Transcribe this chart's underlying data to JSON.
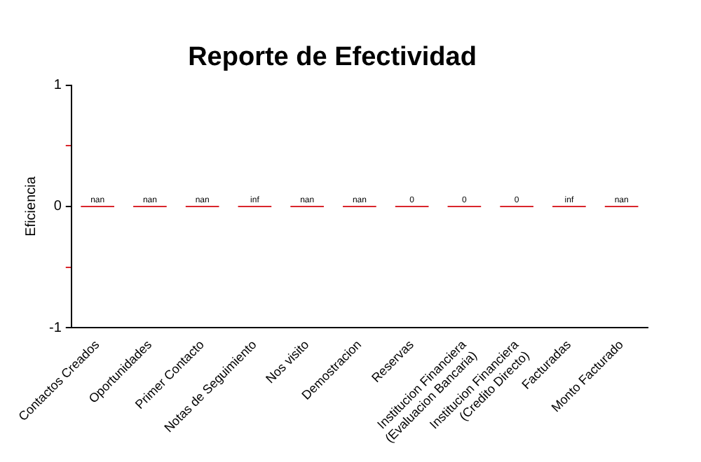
{
  "chart_data": {
    "type": "bar",
    "title": "Reporte de Efectividad",
    "ylabel": "Eficiencia",
    "categories": [
      "Contactos Creados",
      "Oportunidades",
      "Primer Contacto",
      "Notas de Seguimiento",
      "Nos visito",
      "Demostracion",
      "Reservas",
      "Institucion Financiera (Evaluacion Bancaria)",
      "Institucion Financiera (Credito Directo)",
      "Facturadas",
      "Monto Facturado"
    ],
    "values": [
      0,
      0,
      0,
      0,
      0,
      0,
      0,
      0,
      0,
      0,
      0
    ],
    "value_labels": [
      "nan",
      "nan",
      "nan",
      "inf",
      "nan",
      "nan",
      "0",
      "0",
      "0",
      "inf",
      "nan"
    ],
    "color": "#d9262c",
    "ylim": [
      -1,
      1
    ],
    "yticks": [
      -1,
      {
        "value": -0.5,
        "label": null
      },
      0,
      {
        "value": 0.5,
        "label": null
      },
      1
    ],
    "grid": false,
    "legend": false
  }
}
